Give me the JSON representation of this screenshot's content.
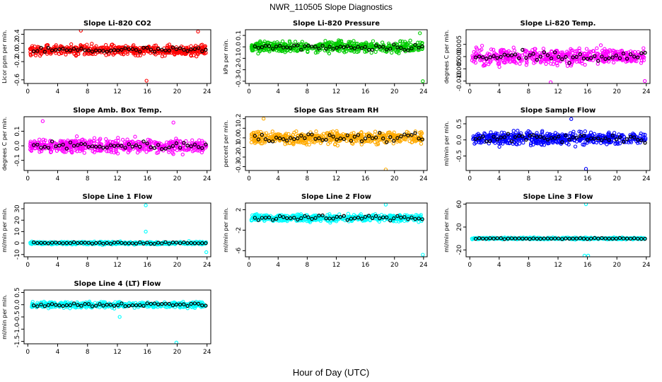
{
  "figure": {
    "title": "NWR_110505  Slope Diagnostics",
    "xlabel": "Hour of Day (UTC)"
  },
  "chart_data": [
    {
      "type": "scatter",
      "title": "Slope Li-820 CO2",
      "ylabel": "Licor ppm per min.",
      "xticks": [
        0,
        4,
        8,
        12,
        16,
        20,
        24
      ],
      "yticks": [
        "-0.6",
        "-0.2",
        "0.0",
        "0.2",
        "0.4"
      ],
      "ytick_values": [
        -0.6,
        -0.2,
        0.0,
        0.2,
        0.4
      ],
      "xlim": [
        -0.5,
        24.5
      ],
      "ylim": [
        -0.68,
        0.5
      ],
      "color": "#ff0000",
      "series_shape": {
        "center": 0.05,
        "spread": 0.14,
        "outliers": [
          [
            15.9,
            -0.62
          ],
          [
            7.1,
            0.48
          ],
          [
            22.8,
            0.46
          ]
        ]
      }
    },
    {
      "type": "scatter",
      "title": "Slope Li-820 Pressure",
      "ylabel": "kPa per min.",
      "xticks": [
        0,
        4,
        8,
        12,
        16,
        20,
        24
      ],
      "yticks": [
        "-0.3",
        "-0.2",
        "-0.1",
        "0.0",
        "0.1"
      ],
      "ytick_values": [
        -0.3,
        -0.2,
        -0.1,
        0.0,
        0.1
      ],
      "xlim": [
        -0.5,
        24.5
      ],
      "ylim": [
        -0.32,
        0.15
      ],
      "color": "#00cc00",
      "series_shape": {
        "center": 0.0,
        "spread": 0.06,
        "outliers": [
          [
            23.9,
            -0.3
          ],
          [
            23.5,
            0.12
          ]
        ]
      }
    },
    {
      "type": "scatter",
      "title": "Slope Li-820 Temp.",
      "ylabel": "degrees C per min.",
      "xticks": [
        0,
        4,
        8,
        12,
        16,
        20,
        24
      ],
      "yticks": [
        "-0.010",
        "-0.005",
        "0.000",
        "0.005"
      ],
      "ytick_values": [
        -0.01,
        -0.005,
        0.0,
        0.005
      ],
      "xlim": [
        -0.5,
        24.5
      ],
      "ylim": [
        -0.011,
        0.011
      ],
      "color": "#ff00ff",
      "series_shape": {
        "center": 0.0,
        "spread": 0.004,
        "outliers": [
          [
            11.0,
            -0.0105
          ],
          [
            23.8,
            -0.01
          ]
        ]
      }
    },
    {
      "type": "scatter",
      "title": "Slope Amb. Box Temp.",
      "ylabel": "degrees C per min.",
      "xticks": [
        0,
        4,
        8,
        12,
        16,
        20,
        24
      ],
      "yticks": [
        "-0.1",
        "0.0",
        "0.1"
      ],
      "ytick_values": [
        -0.1,
        0.0,
        0.1
      ],
      "xlim": [
        -0.5,
        24.5
      ],
      "ylim": [
        -0.17,
        0.2
      ],
      "color": "#ff00ff",
      "series_shape": {
        "center": 0.0,
        "spread": 0.06,
        "outliers": [
          [
            2.0,
            0.17
          ],
          [
            19.5,
            0.16
          ]
        ]
      }
    },
    {
      "type": "scatter",
      "title": "Slope Gas Stream RH",
      "ylabel": "percent per min.",
      "xticks": [
        0,
        4,
        8,
        12,
        16,
        20,
        24
      ],
      "yticks": [
        "-0.3",
        "-0.2",
        "-0.1",
        "0.0",
        "0.1",
        "0.2"
      ],
      "ytick_values": [
        -0.3,
        -0.2,
        -0.1,
        0.0,
        0.1,
        0.2
      ],
      "xlim": [
        -0.5,
        24.5
      ],
      "ylim": [
        -0.34,
        0.22
      ],
      "color": "#ffaa00",
      "series_shape": {
        "center": 0.0,
        "spread": 0.08,
        "outliers": [
          [
            18.8,
            -0.33
          ],
          [
            2.0,
            0.2
          ]
        ]
      }
    },
    {
      "type": "scatter",
      "title": "Slope Sample Flow",
      "ylabel": "ml/min per min.",
      "xticks": [
        0,
        4,
        8,
        12,
        16,
        20,
        24
      ],
      "yticks": [
        "-0.5",
        "0.0",
        "0.5"
      ],
      "ytick_values": [
        -0.5,
        0.0,
        0.5
      ],
      "xlim": [
        -0.5,
        24.5
      ],
      "ylim": [
        -0.95,
        0.72
      ],
      "color": "#0000ff",
      "series_shape": {
        "center": 0.05,
        "spread": 0.25,
        "outliers": [
          [
            15.8,
            -0.9
          ],
          [
            13.8,
            0.65
          ]
        ]
      }
    },
    {
      "type": "scatter",
      "title": "Slope Line 1 Flow",
      "ylabel": "ml/min per min.",
      "xticks": [
        0,
        4,
        8,
        12,
        16,
        20,
        24
      ],
      "yticks": [
        "-10",
        "0",
        "10",
        "20",
        "30"
      ],
      "ytick_values": [
        -10,
        0,
        10,
        20,
        30
      ],
      "xlim": [
        -0.5,
        24.5
      ],
      "ylim": [
        -12,
        35
      ],
      "color": "#00ffff",
      "series_shape": {
        "center": 0.0,
        "spread": 1.5,
        "outliers": [
          [
            15.8,
            33
          ],
          [
            15.8,
            10
          ],
          [
            23.9,
            -8
          ]
        ]
      }
    },
    {
      "type": "scatter",
      "title": "Slope Line 2 Flow",
      "ylabel": "ml/min per min.",
      "xticks": [
        0,
        4,
        8,
        12,
        16,
        20,
        24
      ],
      "yticks": [
        "-6",
        "-2",
        "2"
      ],
      "ytick_values": [
        -6,
        -2,
        2
      ],
      "xlim": [
        -0.5,
        24.5
      ],
      "ylim": [
        -7.2,
        3.3
      ],
      "color": "#00ffff",
      "series_shape": {
        "center": 0.4,
        "spread": 0.9,
        "outliers": [
          [
            23.9,
            -6.8
          ],
          [
            18.8,
            3.0
          ]
        ]
      }
    },
    {
      "type": "scatter",
      "title": "Slope Line 3 Flow",
      "ylabel": "ml/min per min.",
      "xticks": [
        0,
        4,
        8,
        12,
        16,
        20,
        24
      ],
      "yticks": [
        "-20",
        "20",
        "60"
      ],
      "ytick_values": [
        -20,
        20,
        60
      ],
      "xlim": [
        -0.5,
        24.5
      ],
      "ylim": [
        -32,
        62
      ],
      "color": "#00ffff",
      "series_shape": {
        "center": 0.0,
        "spread": 2.0,
        "outliers": [
          [
            15.8,
            60
          ],
          [
            15.6,
            -30
          ],
          [
            16.1,
            -30
          ]
        ]
      }
    },
    {
      "type": "scatter",
      "title": "Slope Line 4 (LT) Flow",
      "ylabel": "ml/min per min.",
      "xticks": [
        0,
        4,
        8,
        12,
        16,
        20,
        24
      ],
      "yticks": [
        "-1.5",
        "-1.0",
        "-0.5",
        "0.0",
        "0.5"
      ],
      "ytick_values": [
        -1.5,
        -1.0,
        -0.5,
        0.0,
        0.5
      ],
      "xlim": [
        -0.5,
        24.5
      ],
      "ylim": [
        -1.6,
        0.6
      ],
      "color": "#00ffff",
      "series_shape": {
        "center": 0.0,
        "spread": 0.15,
        "outliers": [
          [
            19.9,
            -1.55
          ],
          [
            12.3,
            -0.5
          ]
        ]
      }
    }
  ]
}
